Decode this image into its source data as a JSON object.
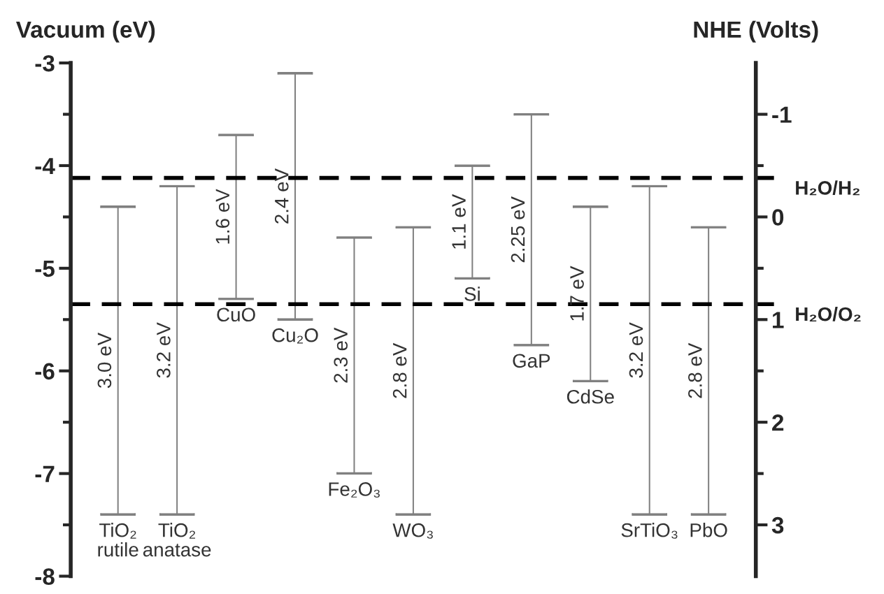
{
  "chart_data": {
    "type": "bar",
    "categories": [
      "TiO₂\nrutile",
      "TiO₂\nanatase",
      "CuO",
      "Cu₂O",
      "Fe₂O₃",
      "WO₃",
      "Si",
      "GaP",
      "CdSe",
      "SrTiO₃",
      "PbO"
    ],
    "values": [
      3.0,
      3.2,
      1.6,
      2.4,
      2.3,
      2.8,
      1.1,
      2.25,
      1.7,
      3.2,
      2.8
    ],
    "base": [
      -7.4,
      -7.4,
      -5.3,
      -5.5,
      -7.0,
      -7.4,
      -5.1,
      -5.75,
      -6.1,
      -7.4,
      -7.4
    ],
    "value_labels": [
      "3.0 eV",
      "3.2 eV",
      "1.6 eV",
      "2.4 eV",
      "2.3 eV",
      "2.8 eV",
      "1.1 eV",
      "2.25 eV",
      "1.7 eV",
      "3.2 eV",
      "2.8 eV"
    ],
    "color": "#808080",
    "ylabel": "Vacuum (eV)",
    "y2label": "NHE (Volts)",
    "ylim": [
      -8,
      -3
    ],
    "yticks": [
      -8,
      -7,
      -6,
      -5,
      -4,
      -3
    ],
    "y2lim": [
      3.5,
      -1.5
    ],
    "y2ticks": [
      -1,
      0,
      1,
      2,
      3
    ],
    "ref_lines": [
      {
        "axis": "y",
        "value": -4.12,
        "label": "H₂O/H₂",
        "color": "#000000",
        "line_style": "dashed"
      },
      {
        "axis": "y",
        "value": -5.35,
        "label": "H₂O/O₂",
        "color": "#000000",
        "line_style": "dashed"
      }
    ],
    "grid": false,
    "legend": false
  }
}
